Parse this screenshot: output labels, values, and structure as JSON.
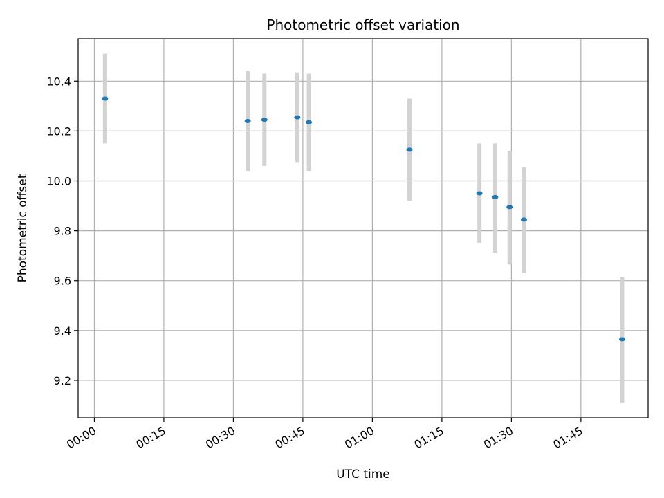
{
  "chart_data": {
    "type": "scatter",
    "title": "Photometric offset variation",
    "xlabel": "UTC time",
    "ylabel": "Photometric offset",
    "x_unit": "minutes",
    "xlim": [
      -3.5,
      119.5
    ],
    "ylim": [
      9.05,
      10.57
    ],
    "x_ticks": [
      0,
      15,
      30,
      45,
      60,
      75,
      90,
      105
    ],
    "x_tick_labels": [
      "00:00",
      "00:15",
      "00:30",
      "00:45",
      "01:00",
      "01:15",
      "01:30",
      "01:45"
    ],
    "y_ticks": [
      9.2,
      9.4,
      9.6,
      9.8,
      10.0,
      10.2,
      10.4
    ],
    "y_tick_labels": [
      "9.2",
      "9.4",
      "9.6",
      "9.8",
      "10.0",
      "10.2",
      "10.4"
    ],
    "grid": true,
    "marker_color": "#1f77b4",
    "errorbar_color": "#d3d3d3",
    "points": [
      {
        "x": 2.3,
        "y": 10.33,
        "ylow": 10.15,
        "yhigh": 10.51
      },
      {
        "x": 33.1,
        "y": 10.24,
        "ylow": 10.04,
        "yhigh": 10.44
      },
      {
        "x": 36.7,
        "y": 10.245,
        "ylow": 10.06,
        "yhigh": 10.43
      },
      {
        "x": 43.8,
        "y": 10.255,
        "ylow": 10.075,
        "yhigh": 10.435
      },
      {
        "x": 46.3,
        "y": 10.235,
        "ylow": 10.04,
        "yhigh": 10.43
      },
      {
        "x": 68.0,
        "y": 10.125,
        "ylow": 9.92,
        "yhigh": 10.33
      },
      {
        "x": 83.1,
        "y": 9.95,
        "ylow": 9.75,
        "yhigh": 10.15
      },
      {
        "x": 86.5,
        "y": 9.935,
        "ylow": 9.71,
        "yhigh": 10.15
      },
      {
        "x": 89.6,
        "y": 9.895,
        "ylow": 9.665,
        "yhigh": 10.12
      },
      {
        "x": 92.7,
        "y": 9.845,
        "ylow": 9.63,
        "yhigh": 10.055
      },
      {
        "x": 113.9,
        "y": 9.365,
        "ylow": 9.11,
        "yhigh": 9.615
      }
    ]
  }
}
